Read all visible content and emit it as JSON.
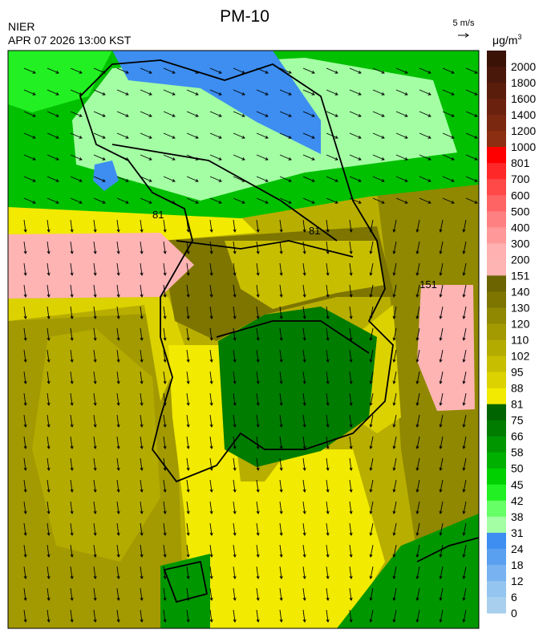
{
  "header": {
    "title": "PM-10",
    "source": "NIER",
    "datetime": "APR 07 2026 13:00 KST",
    "wind_scale": "5 m/s"
  },
  "map": {
    "contour_labels": [
      "81",
      "81",
      "151"
    ]
  },
  "legend": {
    "unit": "μg/m",
    "unit_superscript": "3",
    "levels": [
      {
        "value": 2000,
        "color": "#3a1206"
      },
      {
        "value": 1800,
        "color": "#4a180a"
      },
      {
        "value": 1600,
        "color": "#5a1d0c"
      },
      {
        "value": 1400,
        "color": "#6a220e"
      },
      {
        "value": 1200,
        "color": "#7a2810"
      },
      {
        "value": 1000,
        "color": "#8c2e12"
      },
      {
        "value": 801,
        "color": "#ff0000"
      },
      {
        "value": 700,
        "color": "#ff2828"
      },
      {
        "value": 600,
        "color": "#ff4848"
      },
      {
        "value": 500,
        "color": "#ff6464"
      },
      {
        "value": 400,
        "color": "#ff8080"
      },
      {
        "value": 300,
        "color": "#ff9898"
      },
      {
        "value": 200,
        "color": "#ffb0b0"
      },
      {
        "value": 151,
        "color": "#ffb4b4"
      },
      {
        "value": 140,
        "color": "#6b6400"
      },
      {
        "value": 130,
        "color": "#7d7500"
      },
      {
        "value": 120,
        "color": "#8f8800"
      },
      {
        "value": 110,
        "color": "#a29a00"
      },
      {
        "value": 102,
        "color": "#b4ab00"
      },
      {
        "value": 95,
        "color": "#c8be00"
      },
      {
        "value": 88,
        "color": "#dcd200"
      },
      {
        "value": 81,
        "color": "#f2ea00"
      },
      {
        "value": 75,
        "color": "#006400"
      },
      {
        "value": 66,
        "color": "#007c00"
      },
      {
        "value": 58,
        "color": "#009600"
      },
      {
        "value": 50,
        "color": "#00b000"
      },
      {
        "value": 45,
        "color": "#00d000"
      },
      {
        "value": 42,
        "color": "#22f022"
      },
      {
        "value": 38,
        "color": "#66ff66"
      },
      {
        "value": 31,
        "color": "#a4ffa4"
      },
      {
        "value": 24,
        "color": "#3d8ef0"
      },
      {
        "value": 18,
        "color": "#5aa0f0"
      },
      {
        "value": 12,
        "color": "#78b2f0"
      },
      {
        "value": 6,
        "color": "#94c4f0"
      },
      {
        "value": 0,
        "color": "#a8d0ee"
      }
    ]
  }
}
